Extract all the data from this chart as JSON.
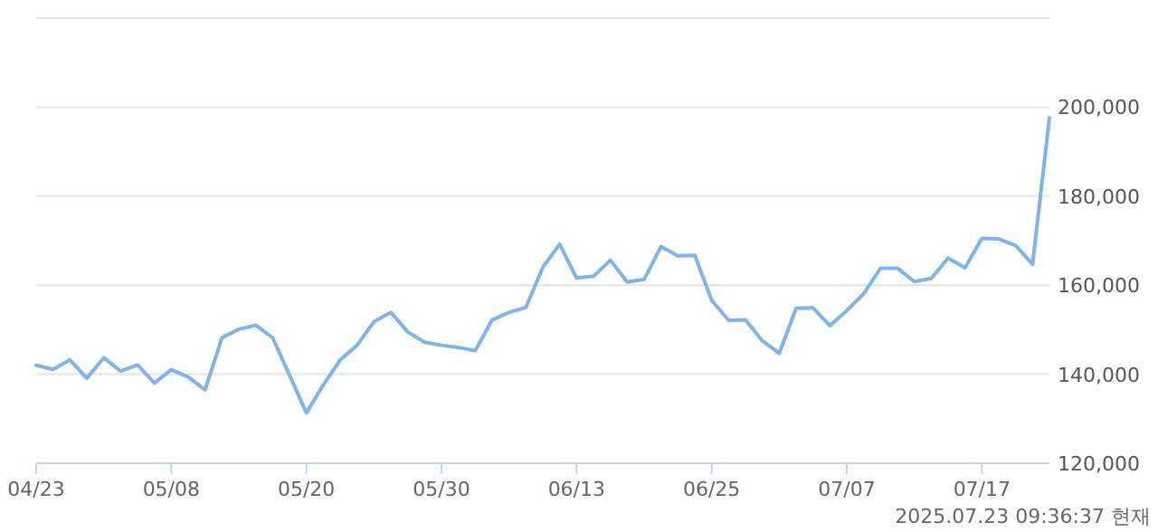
{
  "chart_data": {
    "type": "line",
    "color": "#7eb4ea",
    "grid": "y",
    "marker": "none",
    "line_style": "solid",
    "categories": [
      "04/23",
      null,
      null,
      null,
      null,
      null,
      null,
      null,
      "05/08",
      null,
      null,
      null,
      null,
      null,
      null,
      null,
      "05/20",
      null,
      null,
      null,
      null,
      null,
      null,
      null,
      "05/30",
      null,
      null,
      null,
      null,
      null,
      null,
      null,
      "06/13",
      null,
      null,
      null,
      null,
      null,
      null,
      null,
      "06/25",
      null,
      null,
      null,
      null,
      null,
      null,
      null,
      "07/07",
      null,
      null,
      null,
      null,
      null,
      null,
      null,
      "07/17",
      null,
      null,
      null,
      null
    ],
    "values": [
      142000,
      141100,
      143200,
      139100,
      143700,
      140700,
      142100,
      138000,
      141000,
      139400,
      136500,
      148200,
      150100,
      151000,
      148200,
      139800,
      131300,
      137600,
      143200,
      146500,
      151800,
      153900,
      149500,
      147200,
      146500,
      146000,
      145300,
      152200,
      153900,
      155000,
      164000,
      169200,
      161600,
      162000,
      165600,
      160700,
      161300,
      168700,
      166600,
      166700,
      156600,
      152100,
      152200,
      147500,
      144700,
      154800,
      154900,
      150900,
      154300,
      158100,
      163800,
      163800,
      160800,
      161500,
      166100,
      163900,
      170500,
      170400,
      168900,
      164700,
      197600
    ],
    "ylim": [
      120000,
      220000
    ],
    "yticks": [
      {
        "value": 120000,
        "label": "120,000"
      },
      {
        "value": 140000,
        "label": "140,000"
      },
      {
        "value": 160000,
        "label": "160,000"
      },
      {
        "value": 180000,
        "label": "180,000"
      },
      {
        "value": 200000,
        "label": "200,000"
      },
      {
        "value": 220000,
        "label": null
      }
    ],
    "annotations": [
      "2025.07.23 09:36:37 현재"
    ]
  }
}
